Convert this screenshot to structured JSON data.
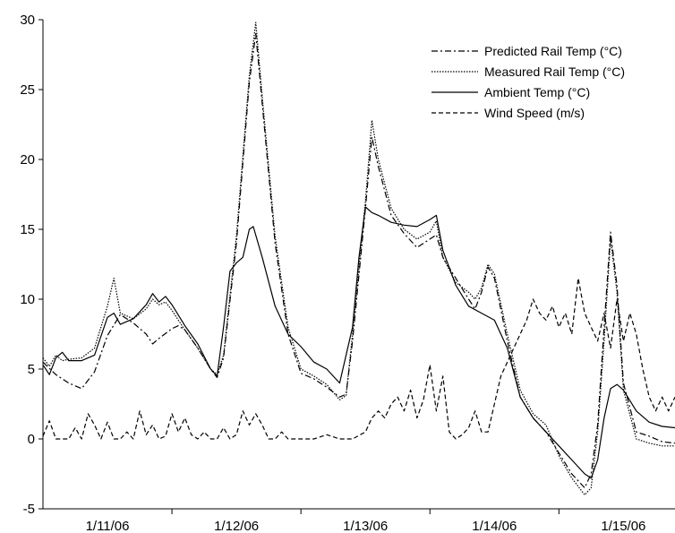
{
  "chart_data": {
    "type": "line",
    "title": "",
    "xlabel": "",
    "ylabel": "",
    "ylim": [
      -5,
      30
    ],
    "yticks": [
      -5,
      0,
      5,
      10,
      15,
      20,
      25,
      30
    ],
    "xlim": [
      0,
      4.9
    ],
    "x_ticks": [
      {
        "label": "1/11/06",
        "x": 0.5
      },
      {
        "label": "1/12/06",
        "x": 1.5
      },
      {
        "label": "1/13/06",
        "x": 2.5
      },
      {
        "label": "1/14/06",
        "x": 3.5
      },
      {
        "label": "1/15/06",
        "x": 4.5
      }
    ],
    "x_dividers": [
      1,
      2,
      3,
      4
    ],
    "legend_position": "top-right",
    "grid": false,
    "series": [
      {
        "name": "Predicted Rail Temp (°C)",
        "style": "dash-dot",
        "points": [
          [
            0,
            5.5
          ],
          [
            0.1,
            4.6
          ],
          [
            0.2,
            4.0
          ],
          [
            0.3,
            3.6
          ],
          [
            0.4,
            4.8
          ],
          [
            0.5,
            7.4
          ],
          [
            0.6,
            8.9
          ],
          [
            0.7,
            8.3
          ],
          [
            0.8,
            7.5
          ],
          [
            0.85,
            6.8
          ],
          [
            0.9,
            7.2
          ],
          [
            1.0,
            7.9
          ],
          [
            1.05,
            8.1
          ],
          [
            1.1,
            7.8
          ],
          [
            1.2,
            6.5
          ],
          [
            1.3,
            5.0
          ],
          [
            1.35,
            4.4
          ],
          [
            1.4,
            5.8
          ],
          [
            1.5,
            14.0
          ],
          [
            1.6,
            25.5
          ],
          [
            1.65,
            29.0
          ],
          [
            1.7,
            24.0
          ],
          [
            1.8,
            14.0
          ],
          [
            1.9,
            7.5
          ],
          [
            2.0,
            4.7
          ],
          [
            2.1,
            4.3
          ],
          [
            2.2,
            3.7
          ],
          [
            2.3,
            3.0
          ],
          [
            2.35,
            3.2
          ],
          [
            2.4,
            7.0
          ],
          [
            2.5,
            16.5
          ],
          [
            2.55,
            21.6
          ],
          [
            2.6,
            19.5
          ],
          [
            2.7,
            16.0
          ],
          [
            2.8,
            14.7
          ],
          [
            2.9,
            13.7
          ],
          [
            3.0,
            14.3
          ],
          [
            3.05,
            14.6
          ],
          [
            3.1,
            13.0
          ],
          [
            3.2,
            11.5
          ],
          [
            3.3,
            10.0
          ],
          [
            3.35,
            9.3
          ],
          [
            3.4,
            10.5
          ],
          [
            3.45,
            12.3
          ],
          [
            3.5,
            11.5
          ],
          [
            3.6,
            7.0
          ],
          [
            3.7,
            3.0
          ],
          [
            3.8,
            1.5
          ],
          [
            3.9,
            0.5
          ],
          [
            4.0,
            -1.0
          ],
          [
            4.1,
            -2.5
          ],
          [
            4.2,
            -3.5
          ],
          [
            4.25,
            -2.5
          ],
          [
            4.3,
            1.0
          ],
          [
            4.35,
            8.0
          ],
          [
            4.4,
            14.8
          ],
          [
            4.45,
            11.0
          ],
          [
            4.5,
            4.0
          ],
          [
            4.6,
            0.5
          ],
          [
            4.7,
            0.2
          ],
          [
            4.8,
            -0.2
          ],
          [
            4.9,
            -0.3
          ]
        ]
      },
      {
        "name": "Measured Rail Temp (°C)",
        "style": "dotted",
        "points": [
          [
            0,
            5.8
          ],
          [
            0.05,
            5.2
          ],
          [
            0.1,
            6.0
          ],
          [
            0.15,
            5.6
          ],
          [
            0.2,
            5.7
          ],
          [
            0.3,
            5.8
          ],
          [
            0.4,
            6.5
          ],
          [
            0.5,
            9.5
          ],
          [
            0.55,
            11.5
          ],
          [
            0.6,
            9.0
          ],
          [
            0.7,
            8.6
          ],
          [
            0.8,
            9.3
          ],
          [
            0.85,
            10.0
          ],
          [
            0.9,
            9.6
          ],
          [
            0.95,
            9.8
          ],
          [
            1.0,
            9.2
          ],
          [
            1.1,
            7.8
          ],
          [
            1.2,
            6.5
          ],
          [
            1.3,
            5.0
          ],
          [
            1.35,
            4.6
          ],
          [
            1.4,
            6.0
          ],
          [
            1.5,
            14.5
          ],
          [
            1.6,
            26.0
          ],
          [
            1.65,
            29.8
          ],
          [
            1.7,
            24.5
          ],
          [
            1.8,
            14.5
          ],
          [
            1.9,
            8.0
          ],
          [
            2.0,
            5.0
          ],
          [
            2.1,
            4.5
          ],
          [
            2.2,
            3.9
          ],
          [
            2.3,
            2.8
          ],
          [
            2.35,
            3.1
          ],
          [
            2.4,
            7.5
          ],
          [
            2.5,
            17.0
          ],
          [
            2.55,
            22.8
          ],
          [
            2.6,
            20.0
          ],
          [
            2.7,
            16.5
          ],
          [
            2.8,
            15.0
          ],
          [
            2.9,
            14.3
          ],
          [
            3.0,
            14.8
          ],
          [
            3.05,
            15.6
          ],
          [
            3.1,
            13.0
          ],
          [
            3.2,
            11.2
          ],
          [
            3.3,
            10.5
          ],
          [
            3.35,
            10.0
          ],
          [
            3.4,
            10.8
          ],
          [
            3.45,
            12.5
          ],
          [
            3.5,
            11.8
          ],
          [
            3.6,
            7.5
          ],
          [
            3.7,
            3.5
          ],
          [
            3.8,
            1.8
          ],
          [
            3.9,
            1.0
          ],
          [
            4.0,
            -1.2
          ],
          [
            4.1,
            -2.8
          ],
          [
            4.2,
            -4.0
          ],
          [
            4.25,
            -3.5
          ],
          [
            4.3,
            0.5
          ],
          [
            4.35,
            7.0
          ],
          [
            4.4,
            14.3
          ],
          [
            4.45,
            10.5
          ],
          [
            4.5,
            3.5
          ],
          [
            4.6,
            0.0
          ],
          [
            4.7,
            -0.3
          ],
          [
            4.8,
            -0.5
          ],
          [
            4.9,
            -0.5
          ]
        ]
      },
      {
        "name": "Ambient Temp (°C)",
        "style": "solid",
        "points": [
          [
            0,
            5.3
          ],
          [
            0.05,
            4.6
          ],
          [
            0.1,
            5.8
          ],
          [
            0.15,
            6.2
          ],
          [
            0.2,
            5.6
          ],
          [
            0.3,
            5.6
          ],
          [
            0.4,
            6.0
          ],
          [
            0.5,
            8.7
          ],
          [
            0.55,
            9.0
          ],
          [
            0.6,
            8.2
          ],
          [
            0.7,
            8.6
          ],
          [
            0.8,
            9.6
          ],
          [
            0.85,
            10.4
          ],
          [
            0.9,
            9.8
          ],
          [
            0.95,
            10.2
          ],
          [
            1.0,
            9.6
          ],
          [
            1.1,
            8.1
          ],
          [
            1.2,
            6.8
          ],
          [
            1.3,
            5.0
          ],
          [
            1.35,
            4.5
          ],
          [
            1.4,
            8.0
          ],
          [
            1.45,
            12.0
          ],
          [
            1.5,
            12.6
          ],
          [
            1.55,
            13.0
          ],
          [
            1.6,
            15.0
          ],
          [
            1.63,
            15.2
          ],
          [
            1.7,
            13.0
          ],
          [
            1.8,
            9.5
          ],
          [
            1.9,
            7.5
          ],
          [
            2.0,
            6.6
          ],
          [
            2.1,
            5.5
          ],
          [
            2.2,
            5.0
          ],
          [
            2.3,
            4.0
          ],
          [
            2.4,
            8.0
          ],
          [
            2.45,
            13.0
          ],
          [
            2.5,
            16.6
          ],
          [
            2.55,
            16.2
          ],
          [
            2.6,
            16.0
          ],
          [
            2.7,
            15.5
          ],
          [
            2.8,
            15.3
          ],
          [
            2.9,
            15.2
          ],
          [
            3.0,
            15.7
          ],
          [
            3.05,
            16.0
          ],
          [
            3.1,
            13.5
          ],
          [
            3.2,
            11.0
          ],
          [
            3.3,
            9.5
          ],
          [
            3.4,
            9.0
          ],
          [
            3.5,
            8.5
          ],
          [
            3.6,
            6.5
          ],
          [
            3.7,
            3.0
          ],
          [
            3.8,
            1.5
          ],
          [
            3.9,
            0.5
          ],
          [
            4.0,
            -0.5
          ],
          [
            4.1,
            -1.5
          ],
          [
            4.2,
            -2.5
          ],
          [
            4.25,
            -2.8
          ],
          [
            4.3,
            -1.5
          ],
          [
            4.35,
            1.5
          ],
          [
            4.4,
            3.6
          ],
          [
            4.45,
            3.9
          ],
          [
            4.5,
            3.5
          ],
          [
            4.6,
            2.0
          ],
          [
            4.7,
            1.2
          ],
          [
            4.8,
            0.9
          ],
          [
            4.9,
            0.8
          ]
        ]
      },
      {
        "name": "Wind Speed (m/s)",
        "style": "dashed",
        "points": [
          [
            0,
            0.2
          ],
          [
            0.05,
            1.3
          ],
          [
            0.1,
            0.0
          ],
          [
            0.2,
            0.0
          ],
          [
            0.25,
            0.8
          ],
          [
            0.3,
            0.0
          ],
          [
            0.35,
            1.8
          ],
          [
            0.4,
            1.0
          ],
          [
            0.45,
            0.0
          ],
          [
            0.5,
            1.2
          ],
          [
            0.55,
            0.0
          ],
          [
            0.6,
            0.0
          ],
          [
            0.65,
            0.5
          ],
          [
            0.7,
            0.0
          ],
          [
            0.75,
            2.0
          ],
          [
            0.8,
            0.3
          ],
          [
            0.85,
            1.0
          ],
          [
            0.9,
            0.0
          ],
          [
            0.95,
            0.2
          ],
          [
            1.0,
            1.8
          ],
          [
            1.05,
            0.5
          ],
          [
            1.1,
            1.5
          ],
          [
            1.15,
            0.3
          ],
          [
            1.2,
            0.0
          ],
          [
            1.25,
            0.5
          ],
          [
            1.3,
            0.0
          ],
          [
            1.35,
            0.0
          ],
          [
            1.4,
            0.8
          ],
          [
            1.45,
            0.0
          ],
          [
            1.5,
            0.3
          ],
          [
            1.55,
            2.0
          ],
          [
            1.6,
            1.0
          ],
          [
            1.65,
            1.8
          ],
          [
            1.7,
            1.0
          ],
          [
            1.75,
            0.0
          ],
          [
            1.8,
            0.0
          ],
          [
            1.85,
            0.5
          ],
          [
            1.9,
            0.0
          ],
          [
            2.0,
            0.0
          ],
          [
            2.1,
            0.0
          ],
          [
            2.2,
            0.3
          ],
          [
            2.3,
            0.0
          ],
          [
            2.4,
            0.0
          ],
          [
            2.5,
            0.5
          ],
          [
            2.55,
            1.5
          ],
          [
            2.6,
            2.0
          ],
          [
            2.65,
            1.5
          ],
          [
            2.7,
            2.5
          ],
          [
            2.75,
            3.0
          ],
          [
            2.8,
            2.0
          ],
          [
            2.85,
            3.5
          ],
          [
            2.9,
            1.5
          ],
          [
            2.95,
            2.8
          ],
          [
            3.0,
            5.3
          ],
          [
            3.05,
            2.0
          ],
          [
            3.1,
            4.5
          ],
          [
            3.15,
            0.5
          ],
          [
            3.2,
            0.0
          ],
          [
            3.25,
            0.3
          ],
          [
            3.3,
            0.8
          ],
          [
            3.35,
            2.0
          ],
          [
            3.4,
            0.5
          ],
          [
            3.45,
            0.5
          ],
          [
            3.5,
            2.5
          ],
          [
            3.55,
            4.5
          ],
          [
            3.6,
            5.5
          ],
          [
            3.65,
            6.5
          ],
          [
            3.7,
            7.5
          ],
          [
            3.75,
            8.5
          ],
          [
            3.8,
            10.0
          ],
          [
            3.85,
            9.0
          ],
          [
            3.9,
            8.5
          ],
          [
            3.95,
            9.5
          ],
          [
            4.0,
            8.0
          ],
          [
            4.05,
            9.0
          ],
          [
            4.1,
            7.5
          ],
          [
            4.15,
            11.5
          ],
          [
            4.2,
            9.0
          ],
          [
            4.25,
            8.0
          ],
          [
            4.3,
            7.0
          ],
          [
            4.35,
            9.0
          ],
          [
            4.4,
            6.5
          ],
          [
            4.45,
            10.0
          ],
          [
            4.5,
            7.0
          ],
          [
            4.55,
            9.0
          ],
          [
            4.6,
            7.5
          ],
          [
            4.65,
            5.0
          ],
          [
            4.7,
            3.0
          ],
          [
            4.75,
            2.0
          ],
          [
            4.8,
            3.0
          ],
          [
            4.85,
            2.0
          ],
          [
            4.9,
            3.0
          ]
        ]
      }
    ]
  }
}
